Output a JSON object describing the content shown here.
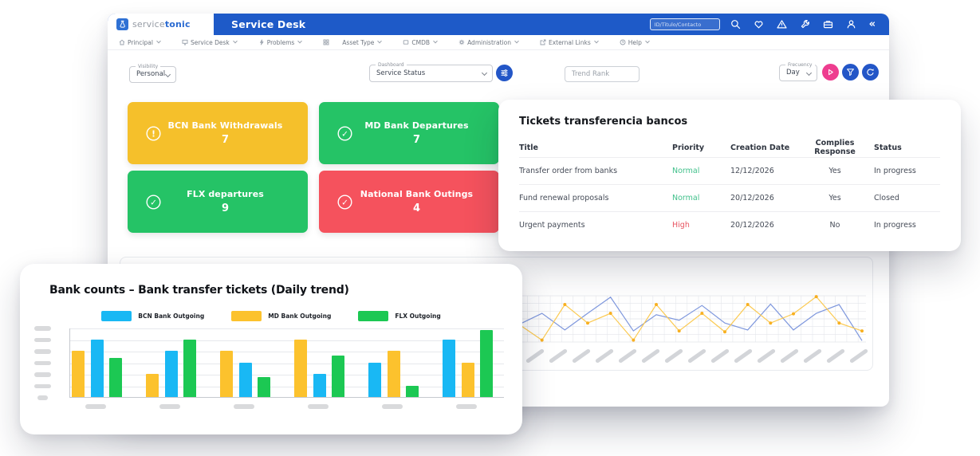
{
  "app_bar": {
    "brand_prefix": "service",
    "brand_suffix": "tonic",
    "title": "Service Desk",
    "search_placeholder": "ID/Titulo/Contacto",
    "icons": [
      "flask-logo-icon",
      "search-icon",
      "heart-icon",
      "alert-triangle-icon",
      "wrench-icon",
      "toolbox-icon",
      "user-icon",
      "collapse-icon"
    ],
    "collapse_glyph": "«",
    "color": "#1e5ac8"
  },
  "nav": {
    "items": [
      {
        "label": "Principal",
        "icon": "home-icon"
      },
      {
        "label": "Service Desk",
        "icon": "monitor-icon"
      },
      {
        "label": "Problems",
        "icon": "bolt-icon"
      },
      {
        "label": "Asset Type",
        "icon": "grid-icon"
      },
      {
        "label": "CMDB",
        "icon": "box-icon"
      },
      {
        "label": "Administration",
        "icon": "gear-icon"
      },
      {
        "label": "External Links",
        "icon": "external-link-icon"
      },
      {
        "label": "Help",
        "icon": "help-circle-icon"
      }
    ]
  },
  "filters": {
    "visibility_label": "Visibility",
    "visibility_value": "Personal",
    "dashboard_label": "Dashboard",
    "dashboard_value": "Service Status",
    "trend_placeholder": "Trend Rank",
    "frequency_label": "Frecuency",
    "frequency_value": "Day",
    "buttons": [
      {
        "name": "tune-button",
        "color": "#2356c7"
      },
      {
        "name": "play-button",
        "color": "#ee3d8f"
      },
      {
        "name": "filter-button",
        "color": "#2356c7"
      },
      {
        "name": "refresh-button",
        "color": "#2356c7"
      }
    ]
  },
  "kpis": [
    {
      "label": "BCN Bank Withdrawals",
      "value": "7",
      "color": "#f5c02b",
      "icon": "alert-circle",
      "glyph": "!"
    },
    {
      "label": "MD Bank Departures",
      "value": "7",
      "color": "#25c366",
      "icon": "check-circle",
      "glyph": "✓"
    },
    {
      "label": "FLX departures",
      "value": "9",
      "color": "#25c366",
      "icon": "check-circle",
      "glyph": "✓"
    },
    {
      "label": "National Bank Outings",
      "value": "4",
      "color": "#f5525d",
      "icon": "check-circle",
      "glyph": "✓"
    }
  ],
  "tickets_card": {
    "title": "Tickets transferencia bancos",
    "columns": [
      "Title",
      "Priority",
      "Creation Date",
      "Complies Response",
      "Status"
    ],
    "rows": [
      {
        "title": "Transfer order from banks",
        "priority": "Normal",
        "priority_color": "#41c08b",
        "creation_date": "12/12/2026",
        "complies_response": "Yes",
        "status": "In progress"
      },
      {
        "title": "Fund renewal proposals",
        "priority": "Normal",
        "priority_color": "#41c08b",
        "creation_date": "20/12/2026",
        "complies_response": "Yes",
        "status": "Closed"
      },
      {
        "title": "Urgent payments",
        "priority": "High",
        "priority_color": "#e85360",
        "creation_date": "20/12/2026",
        "complies_response": "No",
        "status": "In progress"
      }
    ]
  },
  "bank_card": {
    "title": "Bank counts – Bank transfer tickets (Daily trend)"
  },
  "chart_data": [
    {
      "type": "bar",
      "title": "Bank counts – Bank transfer tickets (Daily trend)",
      "legend_position": "top",
      "series": [
        {
          "key": "BCN",
          "name": "BCN Bank Outgoing",
          "color": "#19b8f4"
        },
        {
          "key": "MD",
          "name": "MD Bank Outgoing",
          "color": "#fcc22d"
        },
        {
          "key": "FLX",
          "name": "FLX Outgoing",
          "color": "#1cc853"
        }
      ],
      "categories_redacted": true,
      "category_count": 6,
      "y_tick_count": 7,
      "y_ticks_redacted": true,
      "ymax": 6,
      "grid": true,
      "groups": [
        [
          {
            "series": "MD",
            "value": 4
          },
          {
            "series": "BCN",
            "value": 5
          },
          {
            "series": "FLX",
            "value": 3.4
          }
        ],
        [
          {
            "series": "MD",
            "value": 2
          },
          {
            "series": "BCN",
            "value": 4
          },
          {
            "series": "FLX",
            "value": 5
          }
        ],
        [
          {
            "series": "MD",
            "value": 4
          },
          {
            "series": "BCN",
            "value": 3
          },
          {
            "series": "FLX",
            "value": 1.7
          }
        ],
        [
          {
            "series": "MD",
            "value": 5
          },
          {
            "series": "BCN",
            "value": 2
          },
          {
            "series": "FLX",
            "value": 3.6
          }
        ],
        [
          {
            "series": "BCN",
            "value": 3
          },
          {
            "series": "MD",
            "value": 4
          },
          {
            "series": "FLX",
            "value": 1
          }
        ],
        [
          {
            "series": "BCN",
            "value": 5
          },
          {
            "series": "MD",
            "value": 3
          },
          {
            "series": "FLX",
            "value": 5.8
          }
        ]
      ]
    },
    {
      "type": "line",
      "grid": true,
      "ymax": 10,
      "x_labels_redacted": true,
      "x_placeholder_count": 32,
      "series": [
        {
          "name": "series_1_blue",
          "color": "#7e97dd",
          "values": [
            3.8,
            6.2,
            2.6,
            6.2,
            9.7,
            2.4,
            5.9,
            4.7,
            7.9,
            4.1,
            2.6,
            8.2,
            2.6,
            6.2,
            8.1,
            0.3
          ]
        },
        {
          "name": "series_2_yellow",
          "color": "#fbca52",
          "marker_color": "#f8b021",
          "values": [
            3.8,
            0.4,
            8.1,
            4.1,
            6.2,
            0.4,
            8.1,
            2.4,
            6.2,
            2.2,
            8.1,
            4.1,
            6.1,
            9.8,
            4.1,
            2.4
          ]
        }
      ]
    }
  ]
}
